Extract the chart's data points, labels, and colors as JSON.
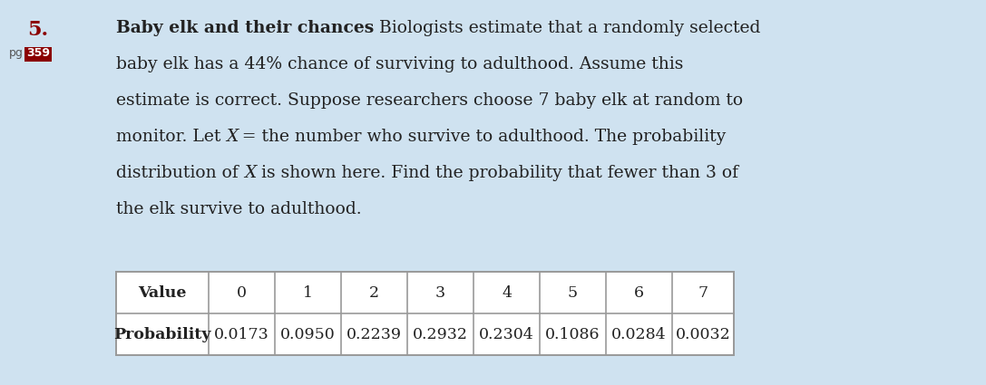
{
  "background_color": "#cfe2f0",
  "number": "5.",
  "number_color": "#8B0000",
  "pg_text": "pg",
  "pg_box_color": "#8B0000",
  "pg_number": "359",
  "pg_number_color": "#ffffff",
  "title_bold": "Baby elk and their chances",
  "line1_cont": " Biologists estimate that a randomly selected",
  "line2": "baby elk has a 44% chance of surviving to adulthood. Assume this",
  "line3": "estimate is correct. Suppose researchers choose 7 baby elk at random to",
  "line4_pre": "monitor. Let ",
  "line4_x": "X",
  "line4_post": " = the number who survive to adulthood. The probability",
  "line5_pre": "distribution of ",
  "line5_x": "X",
  "line5_post": " is shown here. Find the probability that fewer than 3 of",
  "line6": "the elk survive to adulthood.",
  "table_header": [
    "Value",
    "0",
    "1",
    "2",
    "3",
    "4",
    "5",
    "6",
    "7"
  ],
  "table_row_label": "Probability",
  "table_row_values": [
    "0.0173",
    "0.0950",
    "0.2239",
    "0.2932",
    "0.2304",
    "0.1086",
    "0.0284",
    "0.0032"
  ],
  "table_bg": "#ffffff",
  "table_border_color": "#999999",
  "text_color": "#222222",
  "font_size_body": 13.5,
  "font_size_num": 16,
  "font_size_table": 12.5
}
